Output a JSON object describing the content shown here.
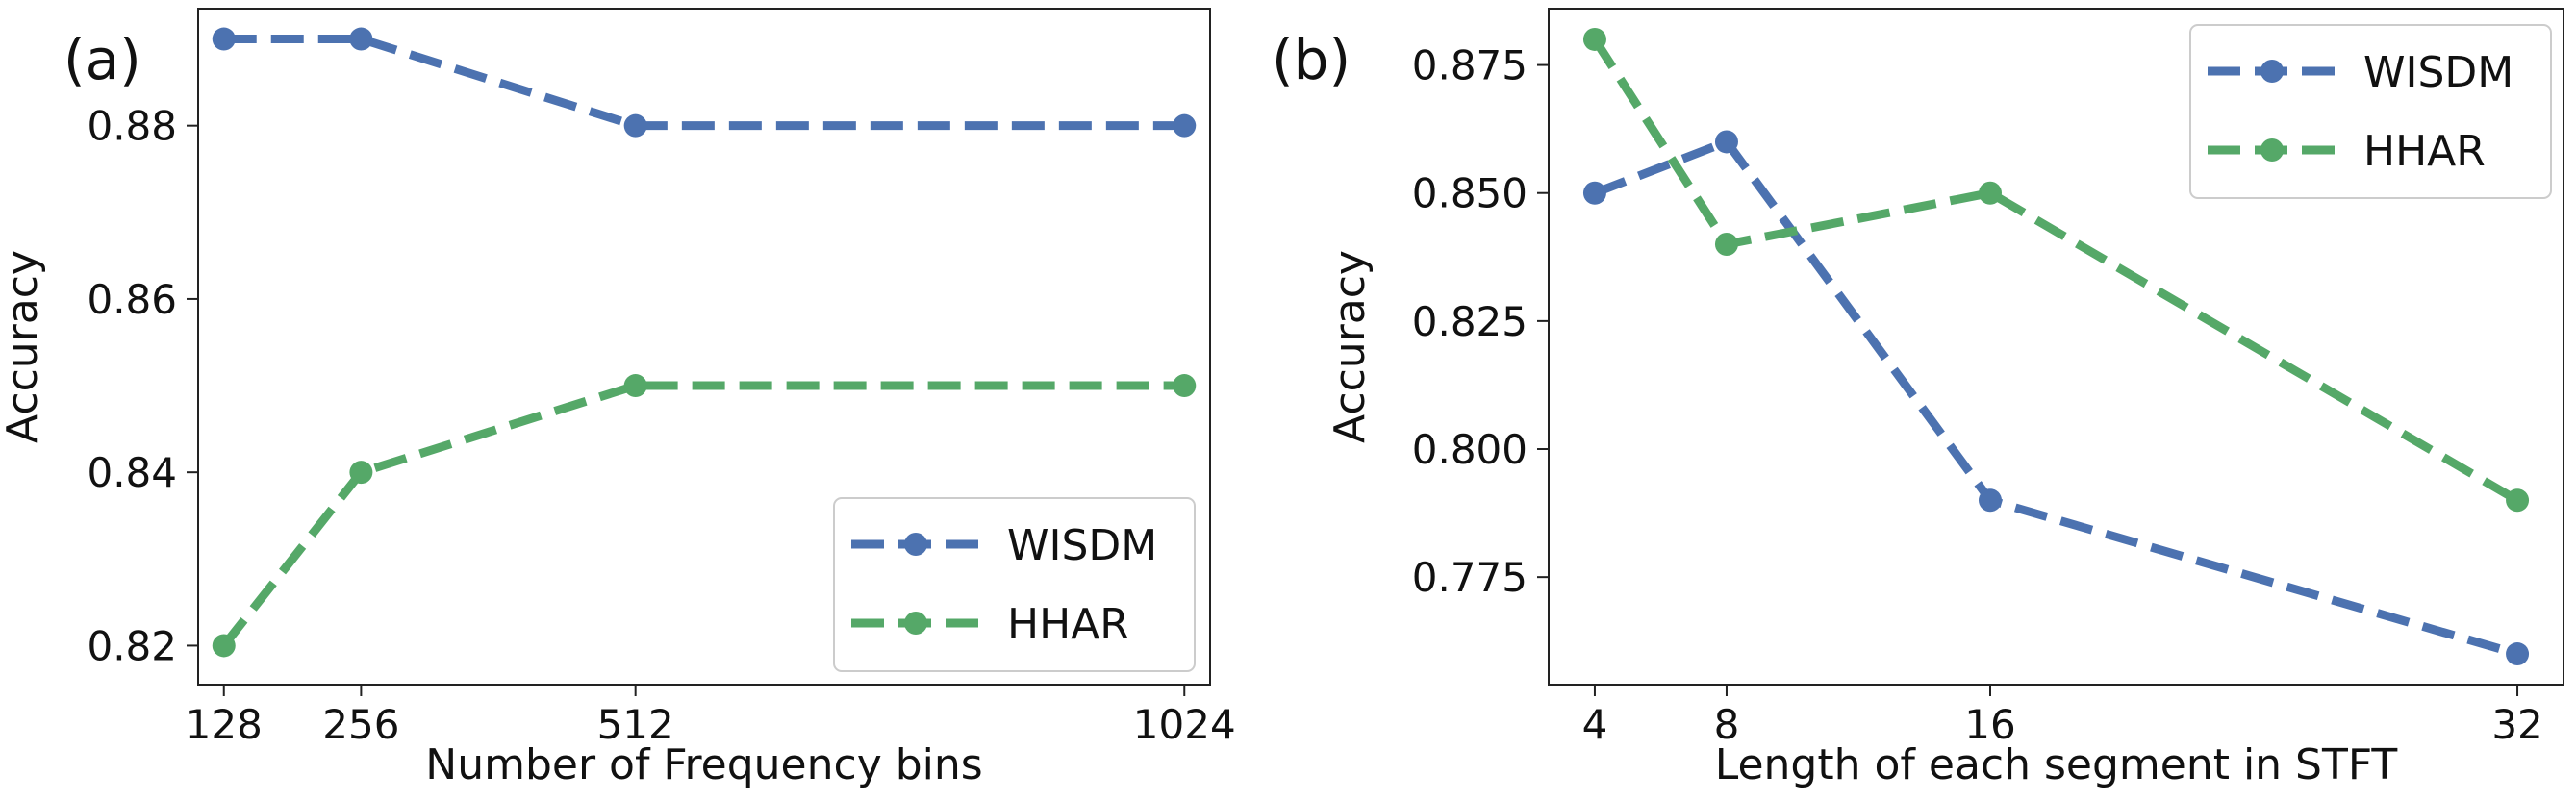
{
  "colors": {
    "wisdm": "#4c72b0",
    "hhar": "#55a868"
  },
  "chart_data": [
    {
      "panel": "(a)",
      "type": "line",
      "x": [
        128,
        256,
        512,
        1024
      ],
      "xticks": [
        128,
        256,
        512,
        1024
      ],
      "xtick_labels": [
        "128",
        "256",
        "512",
        "1024"
      ],
      "xlim": [
        104,
        1048
      ],
      "ylim": [
        0.8155,
        0.8935
      ],
      "yticks": [
        0.82,
        0.84,
        0.86,
        0.88
      ],
      "ytick_labels": [
        "0.82",
        "0.84",
        "0.86",
        "0.88"
      ],
      "xlabel": "Number of Frequency bins",
      "ylabel": "Accuracy",
      "legend_position": "lower-right",
      "series": [
        {
          "name": "WISDM",
          "color_key": "wisdm",
          "values": [
            0.89,
            0.89,
            0.88,
            0.88
          ]
        },
        {
          "name": "HHAR",
          "color_key": "hhar",
          "values": [
            0.82,
            0.84,
            0.85,
            0.85
          ]
        }
      ]
    },
    {
      "panel": "(b)",
      "type": "line",
      "x": [
        4,
        8,
        16,
        32
      ],
      "xticks": [
        4,
        8,
        16,
        32
      ],
      "xtick_labels": [
        "4",
        "8",
        "16",
        "32"
      ],
      "xlim": [
        2.6,
        33.4
      ],
      "ylim": [
        0.754,
        0.886
      ],
      "yticks": [
        0.775,
        0.8,
        0.825,
        0.85,
        0.875
      ],
      "ytick_labels": [
        "0.775",
        "0.800",
        "0.825",
        "0.850",
        "0.875"
      ],
      "xlabel": "Length of each segment in STFT",
      "ylabel": "Accuracy",
      "legend_position": "upper-right",
      "series": [
        {
          "name": "WISDM",
          "color_key": "wisdm",
          "values": [
            0.85,
            0.86,
            0.79,
            0.76
          ]
        },
        {
          "name": "HHAR",
          "color_key": "hhar",
          "values": [
            0.88,
            0.84,
            0.85,
            0.79
          ]
        }
      ]
    }
  ]
}
